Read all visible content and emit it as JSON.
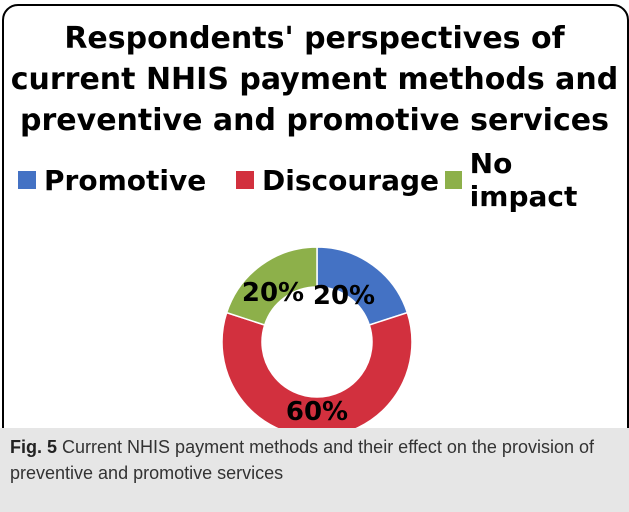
{
  "colors": {
    "promotive": "#4472C4",
    "discourage": "#D2303E",
    "no_impact": "#8DB04A"
  },
  "chart_data": {
    "type": "pie",
    "title": "Respondents' perspectives of current NHIS payment methods and preventive and promotive services",
    "legend_position": "top",
    "donut": true,
    "categories": [
      "Promotive",
      "Discourage",
      "No impact"
    ],
    "values": [
      20,
      60,
      20
    ],
    "data_labels": [
      "20%",
      "60%",
      "20%"
    ]
  },
  "caption": {
    "label": "Fig. 5",
    "text": "Current NHIS payment methods and their effect on the provision of preventive and promotive services"
  }
}
